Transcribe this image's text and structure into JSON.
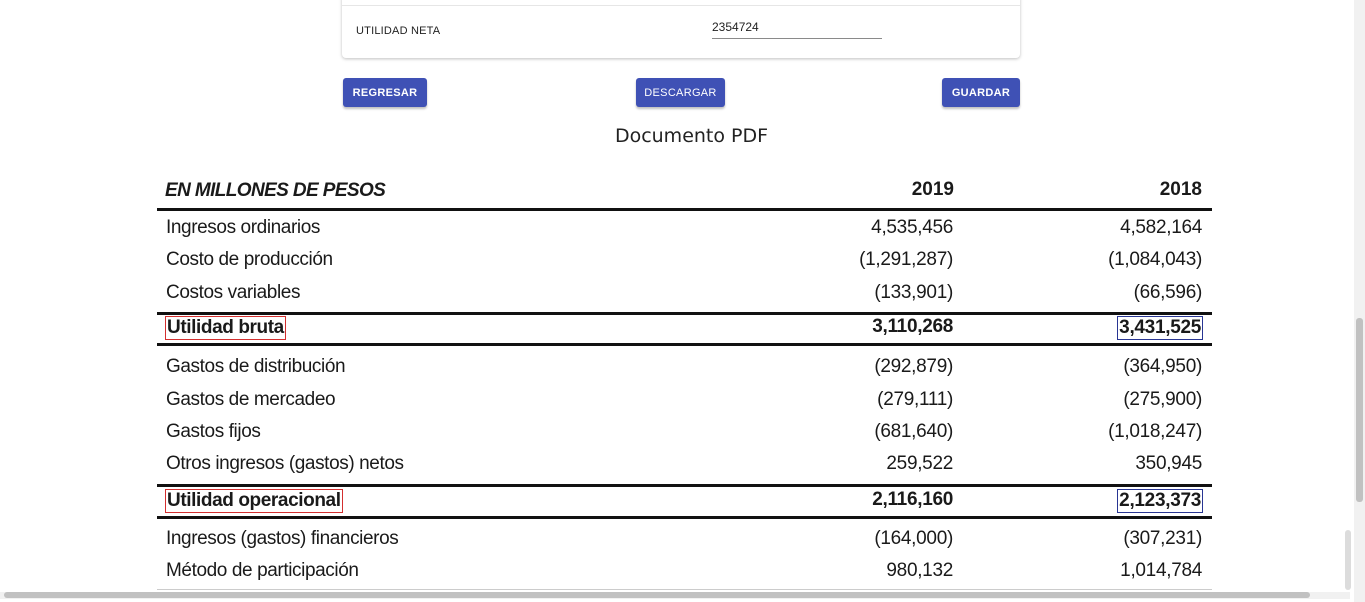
{
  "form": {
    "field_label": "UTILIDAD NETA",
    "field_value": "2354724"
  },
  "buttons": {
    "back_label": "REGRESAR",
    "download_label": "DESCARGAR",
    "save_label": "GUARDAR"
  },
  "document": {
    "title": "Documento PDF",
    "table": {
      "header_label": "EN MILLONES DE PESOS",
      "year_1": "2019",
      "year_2": "2018",
      "rows": [
        {
          "label": "Ingresos ordinarios",
          "v2019": "4,535,456",
          "v2018": "4,582,164"
        },
        {
          "label": "Costo de producción",
          "v2019": "(1,291,287)",
          "v2018": "(1,084,043)"
        },
        {
          "label": "Costos variables",
          "v2019": "(133,901)",
          "v2018": "(66,596)"
        },
        {
          "label": "Utilidad bruta",
          "v2019": "3,110,268",
          "v2018": "3,431,525"
        },
        {
          "label": "Gastos de distribución",
          "v2019": "(292,879)",
          "v2018": "(364,950)"
        },
        {
          "label": "Gastos de mercadeo",
          "v2019": "(279,111)",
          "v2018": "(275,900)"
        },
        {
          "label": "Gastos fijos",
          "v2019": "(681,640)",
          "v2018": "(1,018,247)"
        },
        {
          "label": "Otros ingresos (gastos) netos",
          "v2019": "259,522",
          "v2018": "350,945"
        },
        {
          "label": "Utilidad operacional",
          "v2019": "2,116,160",
          "v2018": "2,123,373"
        },
        {
          "label": "Ingresos (gastos) financieros",
          "v2019": "(164,000)",
          "v2018": "(307,231)"
        },
        {
          "label": "Método de participación",
          "v2019": "980,132",
          "v2018": "1,014,784"
        }
      ]
    }
  },
  "colors": {
    "primary_button": "#3f51b5",
    "highlight_label_border": "#d32f2f",
    "highlight_value_border": "#283593"
  }
}
